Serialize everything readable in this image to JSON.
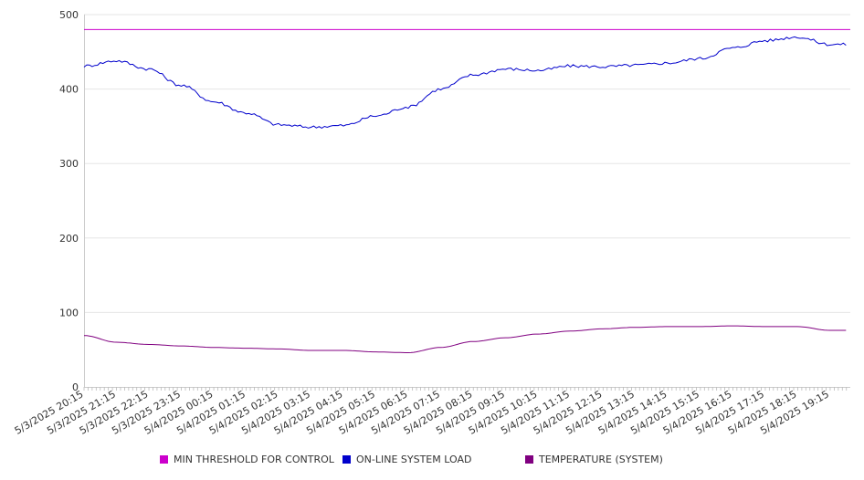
{
  "chart_data": {
    "type": "line",
    "x_tick_labels": [
      "5/3/2025 20:15",
      "5/3/2025 21:15",
      "5/3/2025 22:15",
      "5/3/2025 23:15",
      "5/4/2025 00:15",
      "5/4/2025 01:15",
      "5/4/2025 02:15",
      "5/4/2025 03:15",
      "5/4/2025 04:15",
      "5/4/2025 05:15",
      "5/4/2025 06:15",
      "5/4/2025 07:15",
      "5/4/2025 08:15",
      "5/4/2025 09:15",
      "5/4/2025 10:15",
      "5/4/2025 11:15",
      "5/4/2025 12:15",
      "5/4/2025 13:15",
      "5/4/2025 14:15",
      "5/4/2025 15:15",
      "5/4/2025 16:15",
      "5/4/2025 17:15",
      "5/4/2025 18:15",
      "5/4/2025 19:15"
    ],
    "x_start": "5/3/2025 20:15",
    "x_end": "5/4/2025 19:15",
    "x_hours": [
      0,
      1,
      2,
      3,
      4,
      5,
      6,
      7,
      8,
      9,
      10,
      11,
      12,
      13,
      14,
      15,
      16,
      17,
      18,
      19,
      20,
      21,
      22,
      23
    ],
    "y_ticks": [
      0,
      100,
      200,
      300,
      400,
      500
    ],
    "ylim": [
      0,
      500
    ],
    "grid": "horizontal",
    "legend_position": "bottom",
    "series": [
      {
        "name": "MIN THRESHOLD FOR CONTROL",
        "color": "#cc00cc",
        "values": [
          480,
          480,
          480,
          480,
          480,
          480,
          480,
          480,
          480,
          480,
          480,
          480,
          480,
          480,
          480,
          480,
          480,
          480,
          480,
          480,
          480,
          480,
          480,
          480
        ]
      },
      {
        "name": "ON-LINE SYSTEM LOAD",
        "color": "#0000cc",
        "values": [
          431,
          438,
          427,
          405,
          383,
          368,
          352,
          349,
          351,
          364,
          376,
          400,
          419,
          427,
          425,
          431,
          430,
          432,
          435,
          441,
          455,
          465,
          470,
          460
        ]
      },
      {
        "name": "TEMPERATURE (SYSTEM)",
        "color": "#800080",
        "values": [
          69,
          60,
          57,
          55,
          53,
          52,
          51,
          49,
          49,
          47,
          46,
          53,
          61,
          66,
          71,
          75,
          78,
          80,
          81,
          81,
          82,
          81,
          81,
          76
        ]
      }
    ]
  }
}
